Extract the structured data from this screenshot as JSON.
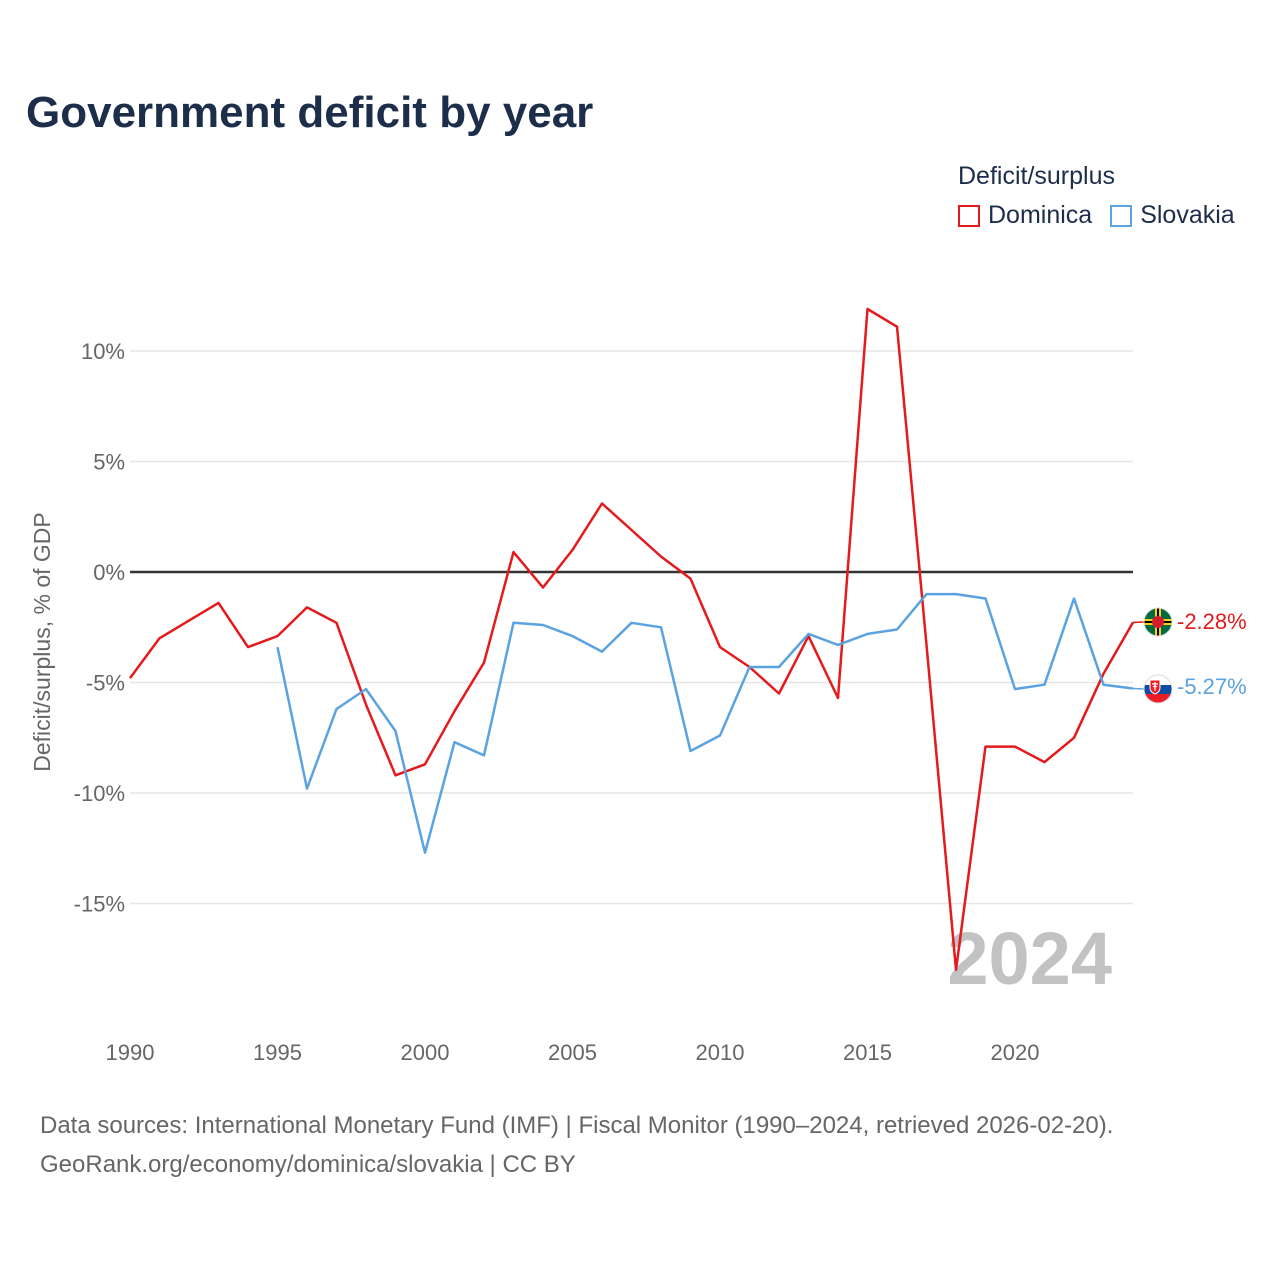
{
  "title": "Government deficit by year",
  "legend": {
    "title": "Deficit/surplus",
    "items": [
      {
        "label": "Dominica",
        "color": "#e41a1c"
      },
      {
        "label": "Slovakia",
        "color": "#5ba3e0"
      }
    ]
  },
  "chart_data": {
    "type": "line",
    "title": "Government deficit by year",
    "ylabel": "Deficit/surplus, % of GDP",
    "xlabel": "",
    "xlim": [
      1990,
      2024
    ],
    "ylim": [
      -20,
      12
    ],
    "yticks": [
      10,
      5,
      0,
      -5,
      -10,
      -15
    ],
    "ytick_labels": [
      "10%",
      "5%",
      "0%",
      "-5%",
      "-10%",
      "-15%"
    ],
    "xticks": [
      1990,
      1995,
      2000,
      2005,
      2010,
      2015,
      2020
    ],
    "xtick_labels": [
      "1990",
      "1995",
      "2000",
      "2005",
      "2010",
      "2015",
      "2020"
    ],
    "year_watermark": "2024",
    "series": [
      {
        "name": "Dominica",
        "color": "#e41a1c",
        "end_label": "-2.28%",
        "points": [
          [
            1990,
            -4.8
          ],
          [
            1991,
            -3.0
          ],
          [
            1992,
            -2.2
          ],
          [
            1993,
            -1.4
          ],
          [
            1994,
            -3.4
          ],
          [
            1995,
            -2.9
          ],
          [
            1996,
            -1.6
          ],
          [
            1997,
            -2.3
          ],
          [
            1998,
            -6.0
          ],
          [
            1999,
            -9.2
          ],
          [
            2000,
            -8.7
          ],
          [
            2001,
            -6.3
          ],
          [
            2002,
            -4.1
          ],
          [
            2003,
            0.9
          ],
          [
            2004,
            -0.7
          ],
          [
            2005,
            1.0
          ],
          [
            2006,
            3.1
          ],
          [
            2007,
            1.9
          ],
          [
            2008,
            0.7
          ],
          [
            2009,
            -0.3
          ],
          [
            2010,
            -3.4
          ],
          [
            2011,
            -4.3
          ],
          [
            2012,
            -5.5
          ],
          [
            2013,
            -2.9
          ],
          [
            2014,
            -5.7
          ],
          [
            2015,
            11.9
          ],
          [
            2016,
            11.1
          ],
          [
            2017,
            -3.3
          ],
          [
            2018,
            -18.0
          ],
          [
            2019,
            -7.9
          ],
          [
            2020,
            -7.9
          ],
          [
            2021,
            -8.6
          ],
          [
            2022,
            -7.5
          ],
          [
            2023,
            -4.6
          ],
          [
            2024,
            -2.28
          ]
        ]
      },
      {
        "name": "Slovakia",
        "color": "#5ba3e0",
        "end_label": "-5.27%",
        "points": [
          [
            1995,
            -3.4
          ],
          [
            1996,
            -9.8
          ],
          [
            1997,
            -6.2
          ],
          [
            1998,
            -5.3
          ],
          [
            1999,
            -7.2
          ],
          [
            2000,
            -12.7
          ],
          [
            2001,
            -7.7
          ],
          [
            2002,
            -8.3
          ],
          [
            2003,
            -2.3
          ],
          [
            2004,
            -2.4
          ],
          [
            2005,
            -2.9
          ],
          [
            2006,
            -3.6
          ],
          [
            2007,
            -2.3
          ],
          [
            2008,
            -2.5
          ],
          [
            2009,
            -8.1
          ],
          [
            2010,
            -7.4
          ],
          [
            2011,
            -4.3
          ],
          [
            2012,
            -4.3
          ],
          [
            2013,
            -2.8
          ],
          [
            2014,
            -3.3
          ],
          [
            2015,
            -2.8
          ],
          [
            2016,
            -2.6
          ],
          [
            2017,
            -1.0
          ],
          [
            2018,
            -1.0
          ],
          [
            2019,
            -1.2
          ],
          [
            2020,
            -5.3
          ],
          [
            2021,
            -5.1
          ],
          [
            2022,
            -1.2
          ],
          [
            2023,
            -5.1
          ],
          [
            2024,
            -5.27
          ]
        ]
      }
    ]
  },
  "footer": {
    "line1": "Data sources: International Monetary Fund (IMF) | Fiscal Monitor (1990–2024, retrieved 2026-02-20).",
    "line2": "GeoRank.org/economy/dominica/slovakia | CC BY"
  }
}
